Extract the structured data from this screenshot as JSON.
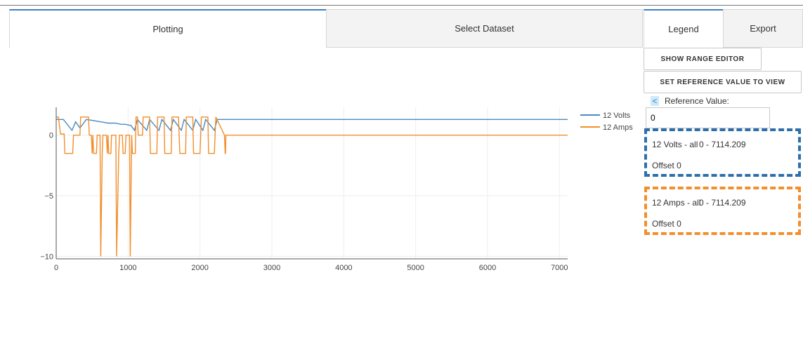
{
  "tabs": [
    {
      "label": "Plotting"
    },
    {
      "label": "Select Dataset"
    },
    {
      "label": "Legend"
    },
    {
      "label": "Export"
    }
  ],
  "buttons": {
    "range_editor": "SHOW RANGE EDITOR",
    "set_reference": "SET REFERENCE VALUE TO VIEW"
  },
  "reference": {
    "caret_icon": "less-than-icon",
    "caret_glyph": "<",
    "label": "Reference Value:",
    "value": "0"
  },
  "legend_entries": [
    {
      "name": "12 Volts - all",
      "range": "0 - 7114.209",
      "offset": "Offset 0",
      "color": "#2d6fac"
    },
    {
      "name": "12 Amps - all",
      "range": "0 - 7114.209",
      "offset": "Offset 0",
      "color": "#f28e2b"
    }
  ],
  "chart_data": {
    "type": "line",
    "xlim": [
      0,
      7114.209
    ],
    "ylim": [
      -10.2,
      2.3
    ],
    "x_ticks": [
      0,
      1000,
      2000,
      3000,
      4000,
      5000,
      6000,
      7000
    ],
    "y_ticks": [
      0,
      -5,
      -10
    ],
    "y_tick_labels": [
      "0",
      "−5",
      "−10"
    ],
    "grid": true,
    "legend_position": "top-right",
    "series": [
      {
        "name": "12 Volts",
        "color": "#4a8ac4",
        "x": [
          0,
          100,
          220,
          270,
          330,
          420,
          520,
          620,
          720,
          820,
          900,
          960,
          1040,
          1090,
          1130,
          1260,
          1300,
          1430,
          1470,
          1590,
          1630,
          1740,
          1780,
          1900,
          1940,
          2040,
          2080,
          2200,
          2240,
          2320,
          7114
        ],
        "values": [
          1.3,
          1.3,
          0.4,
          1.1,
          0.6,
          1.3,
          1.2,
          1.1,
          1.0,
          1.0,
          0.9,
          0.9,
          0.8,
          0.4,
          1.3,
          0.4,
          1.3,
          0.4,
          1.3,
          0.4,
          1.3,
          0.4,
          1.3,
          0.4,
          1.3,
          0.4,
          1.3,
          0.4,
          1.3,
          1.3,
          1.3
        ]
      },
      {
        "name": "12 Amps",
        "color": "#f28e2b",
        "x": [
          0,
          30,
          60,
          110,
          120,
          230,
          240,
          330,
          340,
          450,
          460,
          490,
          500,
          510,
          520,
          560,
          570,
          610,
          620,
          640,
          650,
          700,
          710,
          720,
          730,
          760,
          770,
          830,
          840,
          870,
          880,
          920,
          930,
          960,
          970,
          1020,
          1030,
          1050,
          1060,
          1100,
          1110,
          1130,
          1140,
          1200,
          1210,
          1300,
          1310,
          1400,
          1410,
          1500,
          1510,
          1600,
          1610,
          1700,
          1720,
          1800,
          1810,
          1900,
          1910,
          2000,
          2020,
          2110,
          2120,
          2200,
          2220,
          2340,
          2350,
          2355,
          2360,
          7114
        ],
        "values": [
          1.5,
          1.5,
          0.1,
          0.1,
          -1.5,
          -1.5,
          0,
          0,
          1.5,
          1.5,
          0,
          0,
          -1.5,
          0,
          -1.5,
          -1.5,
          0,
          0,
          -10,
          -1.5,
          0,
          0,
          -1.5,
          0,
          -1.5,
          -1.5,
          0,
          0,
          -10,
          -1.5,
          0,
          0,
          -1.5,
          -1.5,
          0,
          0,
          -10,
          0,
          -1.5,
          -1.5,
          1.5,
          1.5,
          0,
          0,
          1.5,
          1.5,
          -1.5,
          -1.5,
          1.5,
          1.5,
          -1.5,
          -1.5,
          1.5,
          1.5,
          -1.5,
          -1.5,
          1.5,
          1.5,
          -1.5,
          -1.5,
          1.5,
          1.5,
          -1.5,
          -1.5,
          1.5,
          0,
          -1.5,
          -1.5,
          0,
          0
        ]
      }
    ]
  }
}
